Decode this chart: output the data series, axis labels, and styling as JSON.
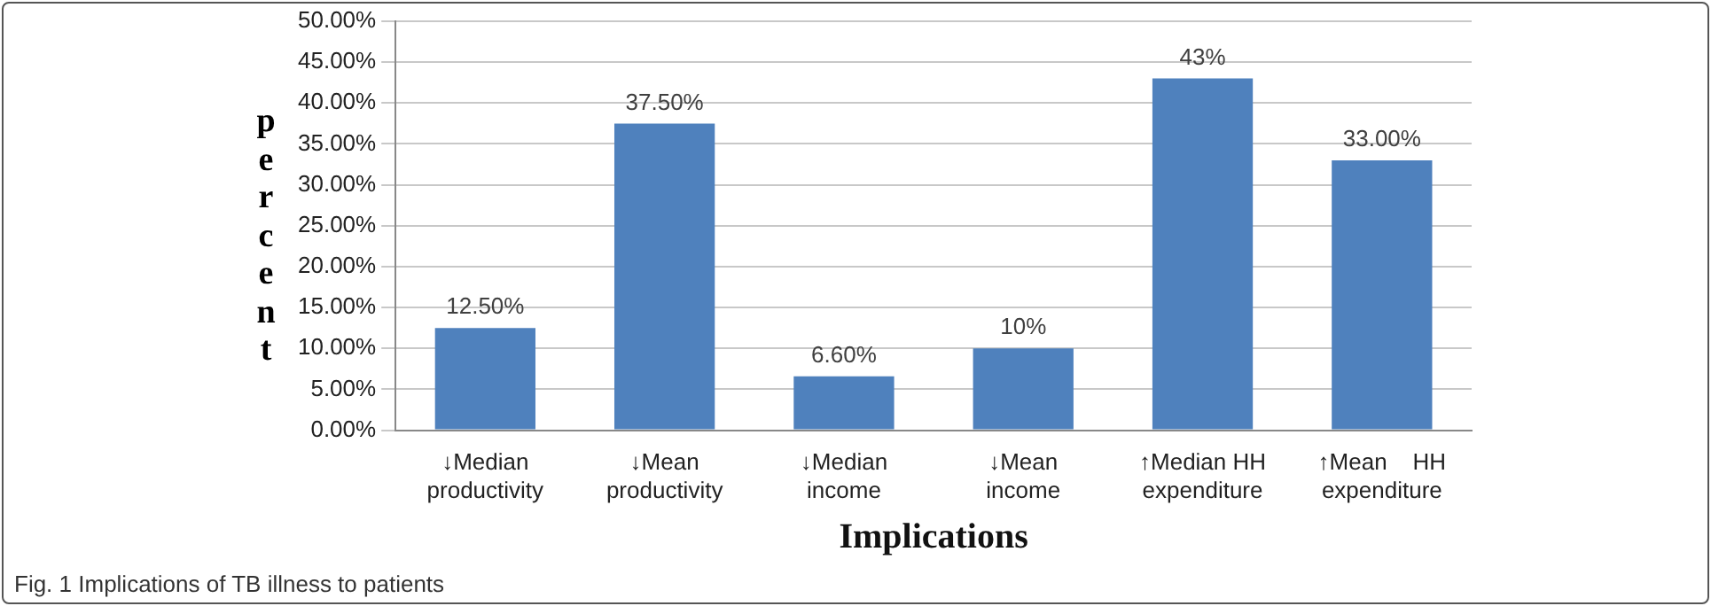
{
  "chart_data": {
    "type": "bar",
    "xlabel": "Implications",
    "ylabel": "percent",
    "categories": [
      "↓Median\nproductivity",
      "↓Mean\nproductivity",
      "↓Median\nincome",
      "↓Mean\nincome",
      "↑Median HH\nexpenditure",
      "↑Mean    HH\nexpenditure"
    ],
    "values": [
      12.5,
      37.5,
      6.6,
      10,
      43,
      33
    ],
    "color": "#4f81bd",
    "value_labels": [
      "12.50%",
      "37.50%",
      "6.60%",
      "10%",
      "43%",
      "33.00%"
    ],
    "ylim": [
      0,
      50
    ],
    "yticks": [
      {
        "value": 0,
        "label": "0.00%"
      },
      {
        "value": 5,
        "label": "5.00%"
      },
      {
        "value": 10,
        "label": "10.00%"
      },
      {
        "value": 15,
        "label": "15.00%"
      },
      {
        "value": 20,
        "label": "20.00%"
      },
      {
        "value": 25,
        "label": "25.00%"
      },
      {
        "value": 30,
        "label": "30.00%"
      },
      {
        "value": 35,
        "label": "35.00%"
      },
      {
        "value": 40,
        "label": "40.00%"
      },
      {
        "value": 45,
        "label": "45.00%"
      },
      {
        "value": 50,
        "label": "50.00%"
      }
    ],
    "grid": "y",
    "legend": false,
    "annotations": [
      "Fig. 1 Implications of TB illness to patients"
    ]
  }
}
